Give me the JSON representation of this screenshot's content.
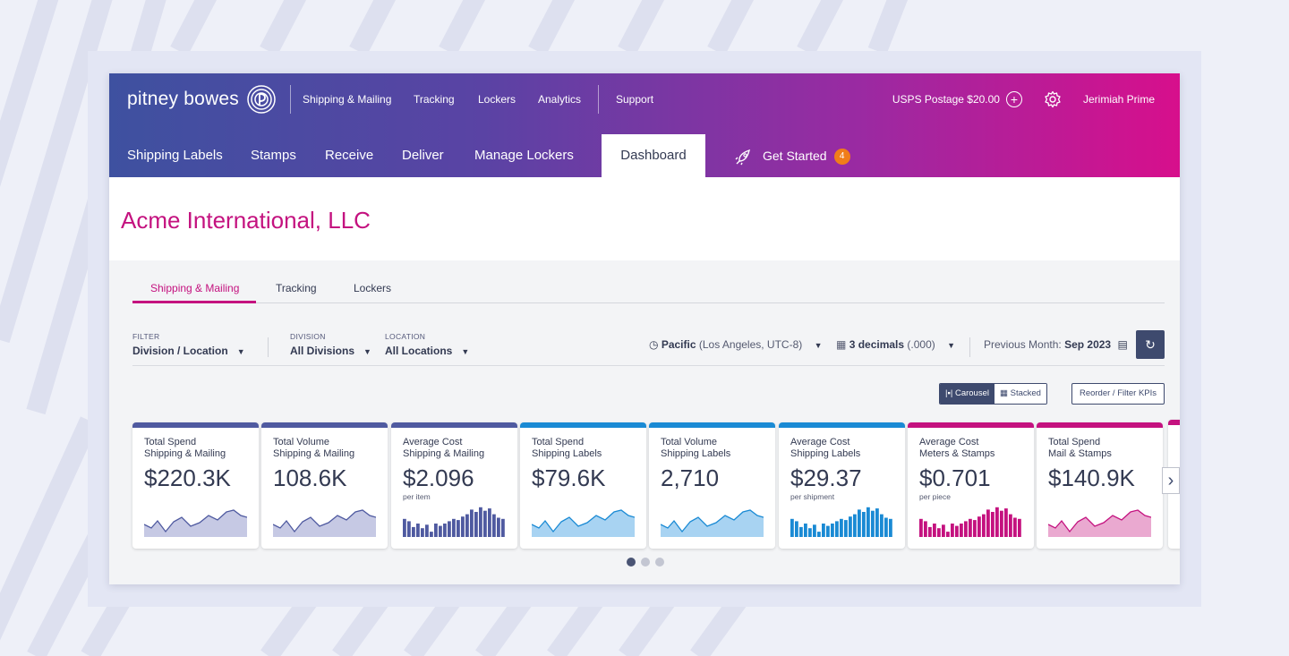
{
  "brand": {
    "logo_text": "pitney bowes"
  },
  "top_nav": [
    "Shipping & Mailing",
    "Tracking",
    "Lockers",
    "Analytics",
    "Support"
  ],
  "postage": "USPS Postage $20.00",
  "user": "Jerimiah Prime",
  "main_nav": {
    "items": [
      "Shipping Labels",
      "Stamps",
      "Receive",
      "Deliver",
      "Manage Lockers"
    ],
    "active": "Dashboard",
    "get_started": "Get Started",
    "get_started_count": "4"
  },
  "company": "Acme International, LLC",
  "tabs": [
    "Shipping & Mailing",
    "Tracking",
    "Lockers"
  ],
  "filters": {
    "filter_label": "FILTER",
    "filter_value": "Division / Location",
    "division_label": "DIVISION",
    "division_value": "All Divisions",
    "location_label": "LOCATION",
    "location_value": "All Locations",
    "timezone_bold": "Pacific",
    "timezone_rest": "(Los Angeles, UTC-8)",
    "decimals_bold": "3 decimals",
    "decimals_rest": "(.000)",
    "period_label": "Previous Month:",
    "period_value": "Sep 2023"
  },
  "view": {
    "carousel": "Carousel",
    "stacked": "Stacked",
    "reorder": "Reorder / Filter KPIs"
  },
  "colors": {
    "navy": "#4f5aa0",
    "blue": "#1a8ad4",
    "magenta": "#c4127f"
  },
  "cards": [
    {
      "title1": "Total Spend",
      "title2": "Shipping & Mailing",
      "value": "$220.3K",
      "sub": "",
      "kind": "line",
      "color": "navy"
    },
    {
      "title1": "Total Volume",
      "title2": "Shipping & Mailing",
      "value": "108.6K",
      "sub": "",
      "kind": "line",
      "color": "navy"
    },
    {
      "title1": "Average Cost",
      "title2": "Shipping & Mailing",
      "value": "$2.096",
      "sub": "per item",
      "kind": "bar",
      "color": "navy"
    },
    {
      "title1": "Total Spend",
      "title2": "Shipping Labels",
      "value": "$79.6K",
      "sub": "",
      "kind": "line",
      "color": "blue"
    },
    {
      "title1": "Total Volume",
      "title2": "Shipping Labels",
      "value": "2,710",
      "sub": "",
      "kind": "line",
      "color": "blue"
    },
    {
      "title1": "Average Cost",
      "title2": "Shipping Labels",
      "value": "$29.37",
      "sub": "per shipment",
      "kind": "bar",
      "color": "blue"
    },
    {
      "title1": "Average Cost",
      "title2": "Meters & Stamps",
      "value": "$0.701",
      "sub": "per piece",
      "kind": "bar",
      "color": "magenta"
    },
    {
      "title1": "Total Spend",
      "title2": "Mail & Stamps",
      "value": "$140.9K",
      "sub": "",
      "kind": "line",
      "color": "magenta"
    }
  ]
}
